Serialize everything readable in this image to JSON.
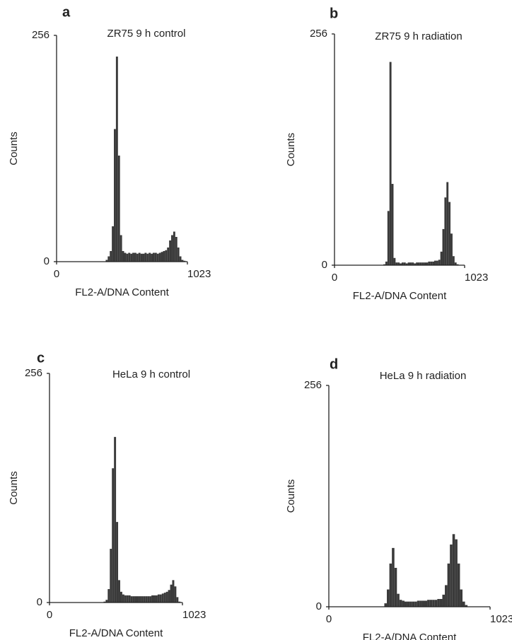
{
  "chart_data": [
    {
      "type": "histogram",
      "label": "a",
      "title": "ZR75 9 h control",
      "xlabel": "FL2-A/DNA Content",
      "ylabel": "Counts",
      "xlim": [
        0,
        1023
      ],
      "xticks": [
        0,
        1023
      ],
      "ylim": [
        0,
        256
      ],
      "yticks": [
        0,
        256
      ],
      "grid": false,
      "color": "#3a3a3a",
      "bins": [
        384,
        400,
        416,
        432,
        448,
        464,
        480,
        496,
        512,
        528,
        544,
        560,
        576,
        592,
        608,
        624,
        640,
        656,
        672,
        688,
        704,
        720,
        736,
        752,
        768,
        784,
        800,
        816,
        832,
        848,
        864,
        880,
        896,
        912,
        928,
        944,
        960,
        976,
        992,
        1008
      ],
      "values": [
        2,
        6,
        12,
        40,
        150,
        232,
        120,
        30,
        12,
        10,
        9,
        10,
        9,
        10,
        10,
        9,
        10,
        9,
        9,
        10,
        9,
        10,
        9,
        10,
        10,
        9,
        10,
        11,
        12,
        13,
        16,
        24,
        30,
        34,
        28,
        16,
        6,
        2,
        1
      ]
    },
    {
      "type": "histogram",
      "label": "b",
      "title": "ZR75 9 h radiation",
      "xlabel": "FL2-A/DNA Content",
      "ylabel": "Counts",
      "xlim": [
        0,
        1023
      ],
      "xticks": [
        0,
        1023
      ],
      "ylim": [
        0,
        256
      ],
      "yticks": [
        0,
        256
      ],
      "grid": false,
      "color": "#3a3a3a",
      "bins": [
        384,
        400,
        416,
        432,
        448,
        464,
        480,
        496,
        512,
        528,
        544,
        560,
        576,
        592,
        608,
        624,
        640,
        656,
        672,
        688,
        704,
        720,
        736,
        752,
        768,
        784,
        800,
        816,
        832,
        848,
        864,
        880,
        896,
        912,
        928,
        944,
        960,
        976,
        992,
        1008
      ],
      "values": [
        1,
        4,
        60,
        225,
        90,
        8,
        3,
        3,
        2,
        3,
        3,
        2,
        3,
        3,
        3,
        2,
        3,
        3,
        3,
        3,
        3,
        3,
        4,
        4,
        4,
        5,
        5,
        6,
        15,
        40,
        75,
        92,
        70,
        35,
        10,
        3,
        1,
        0,
        0
      ]
    },
    {
      "type": "histogram",
      "label": "c",
      "title": "HeLa 9 h control",
      "xlabel": "FL2-A/DNA Content",
      "ylabel": "Counts",
      "xlim": [
        0,
        1023
      ],
      "xticks": [
        0,
        1023
      ],
      "ylim": [
        0,
        256
      ],
      "yticks": [
        0,
        256
      ],
      "grid": false,
      "color": "#3a3a3a",
      "bins": [
        384,
        400,
        416,
        432,
        448,
        464,
        480,
        496,
        512,
        528,
        544,
        560,
        576,
        592,
        608,
        624,
        640,
        656,
        672,
        688,
        704,
        720,
        736,
        752,
        768,
        784,
        800,
        816,
        832,
        848,
        864,
        880,
        896,
        912,
        928,
        944,
        960,
        976,
        992,
        1008
      ],
      "values": [
        0,
        0,
        1,
        3,
        15,
        60,
        150,
        185,
        90,
        25,
        12,
        9,
        8,
        8,
        8,
        7,
        7,
        7,
        7,
        7,
        7,
        7,
        7,
        7,
        7,
        8,
        8,
        8,
        9,
        9,
        10,
        11,
        12,
        14,
        20,
        25,
        18,
        6,
        1
      ]
    },
    {
      "type": "histogram",
      "label": "d",
      "title": "HeLa 9 h radiation",
      "xlabel": "FL2-A/DNA Content",
      "ylabel": "Counts",
      "xlim": [
        0,
        1023
      ],
      "xticks": [
        0,
        1023
      ],
      "ylim": [
        0,
        256
      ],
      "yticks": [
        0,
        256
      ],
      "grid": false,
      "color": "#3a3a3a",
      "bins": [
        352,
        368,
        384,
        400,
        416,
        432,
        448,
        464,
        480,
        496,
        512,
        528,
        544,
        560,
        576,
        592,
        608,
        624,
        640,
        656,
        672,
        688,
        704,
        720,
        736,
        752,
        768,
        784,
        800,
        816,
        832,
        848,
        864,
        880,
        896
      ],
      "values": [
        4,
        20,
        50,
        68,
        45,
        15,
        8,
        7,
        6,
        6,
        6,
        6,
        6,
        7,
        7,
        7,
        7,
        8,
        8,
        8,
        8,
        9,
        9,
        14,
        25,
        50,
        72,
        84,
        78,
        50,
        20,
        6,
        2,
        0
      ]
    }
  ]
}
